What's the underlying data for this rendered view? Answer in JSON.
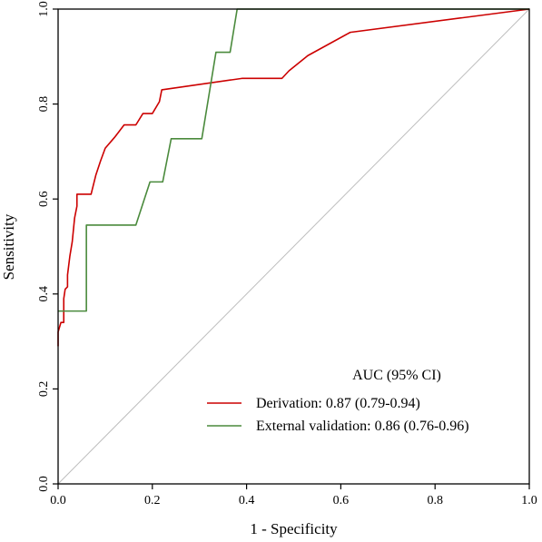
{
  "chart_data": {
    "type": "line",
    "title": "",
    "xlabel": "1 - Specificity",
    "ylabel": "Sensitivity",
    "xlim": [
      0,
      1
    ],
    "ylim": [
      0,
      1
    ],
    "x_ticks": [
      "0.0",
      "0.2",
      "0.4",
      "0.6",
      "0.8",
      "1.0"
    ],
    "y_ticks": [
      "0.0",
      "0.2",
      "0.4",
      "0.6",
      "0.8",
      "1.0"
    ],
    "grid": false,
    "legend": {
      "title": "AUC (95% CI)",
      "placement": "bottom-right",
      "entries": [
        "Derivation: 0.87 (0.79-0.94)",
        "External validation: 0.86 (0.76-0.96)"
      ]
    },
    "reference_line": {
      "points": [
        [
          0,
          0
        ],
        [
          1,
          1
        ]
      ],
      "color": "#bdbdbd"
    },
    "series": [
      {
        "name": "Derivation: 0.87 (0.79-0.94)",
        "color": "#cc0000",
        "points": [
          [
            0.0,
            0.29
          ],
          [
            0.0,
            0.32
          ],
          [
            0.003,
            0.33
          ],
          [
            0.006,
            0.34
          ],
          [
            0.012,
            0.34
          ],
          [
            0.012,
            0.39
          ],
          [
            0.015,
            0.41
          ],
          [
            0.02,
            0.415
          ],
          [
            0.02,
            0.44
          ],
          [
            0.025,
            0.48
          ],
          [
            0.03,
            0.51
          ],
          [
            0.035,
            0.56
          ],
          [
            0.04,
            0.585
          ],
          [
            0.04,
            0.61
          ],
          [
            0.07,
            0.61
          ],
          [
            0.08,
            0.65
          ],
          [
            0.09,
            0.68
          ],
          [
            0.1,
            0.707
          ],
          [
            0.12,
            0.73
          ],
          [
            0.14,
            0.756
          ],
          [
            0.165,
            0.756
          ],
          [
            0.18,
            0.78
          ],
          [
            0.2,
            0.78
          ],
          [
            0.215,
            0.805
          ],
          [
            0.22,
            0.83
          ],
          [
            0.39,
            0.854
          ],
          [
            0.475,
            0.854
          ],
          [
            0.49,
            0.87
          ],
          [
            0.53,
            0.902
          ],
          [
            0.62,
            0.951
          ],
          [
            1.0,
            1.0
          ]
        ]
      },
      {
        "name": "External validation: 0.86 (0.76-0.96)",
        "color": "#4a8a3c",
        "points": [
          [
            0.0,
            0.364
          ],
          [
            0.06,
            0.364
          ],
          [
            0.06,
            0.545
          ],
          [
            0.165,
            0.545
          ],
          [
            0.195,
            0.636
          ],
          [
            0.222,
            0.636
          ],
          [
            0.24,
            0.727
          ],
          [
            0.305,
            0.727
          ],
          [
            0.335,
            0.909
          ],
          [
            0.365,
            0.909
          ],
          [
            0.38,
            1.0
          ],
          [
            1.0,
            1.0
          ]
        ]
      }
    ]
  }
}
